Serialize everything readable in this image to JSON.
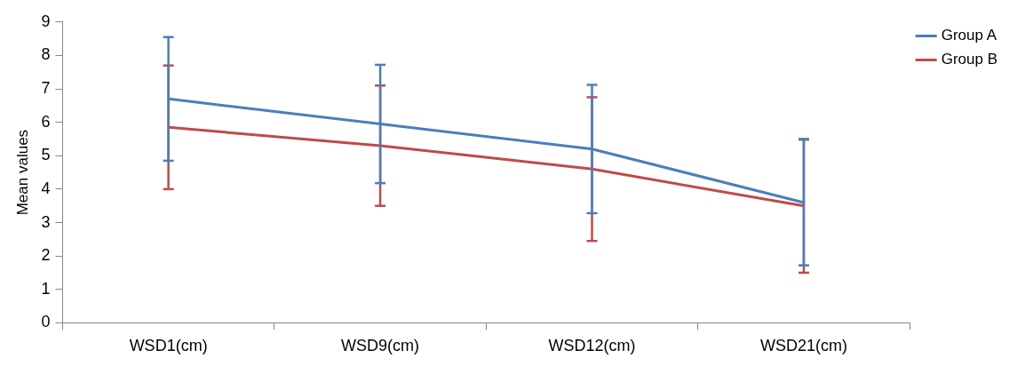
{
  "chart_data": {
    "type": "line",
    "ylabel": "Mean values",
    "categories": [
      "WSD1(cm)",
      "WSD9(cm)",
      "WSD12(cm)",
      "WSD21(cm)"
    ],
    "series": [
      {
        "name": "Group A",
        "color": "#4a7ebb",
        "values": [
          6.7,
          5.95,
          5.2,
          3.6
        ],
        "errors": [
          1.85,
          1.77,
          1.92,
          1.88
        ]
      },
      {
        "name": "Group B",
        "color": "#be4b48",
        "values": [
          5.85,
          5.3,
          4.6,
          3.5
        ],
        "errors": [
          1.85,
          1.8,
          2.15,
          2.0
        ]
      }
    ],
    "ylim": [
      0,
      9
    ],
    "yticks": [
      0,
      1,
      2,
      3,
      4,
      5,
      6,
      7,
      8,
      9
    ],
    "grid": false,
    "legend": "right",
    "marker": "none",
    "line_style": "solid"
  }
}
